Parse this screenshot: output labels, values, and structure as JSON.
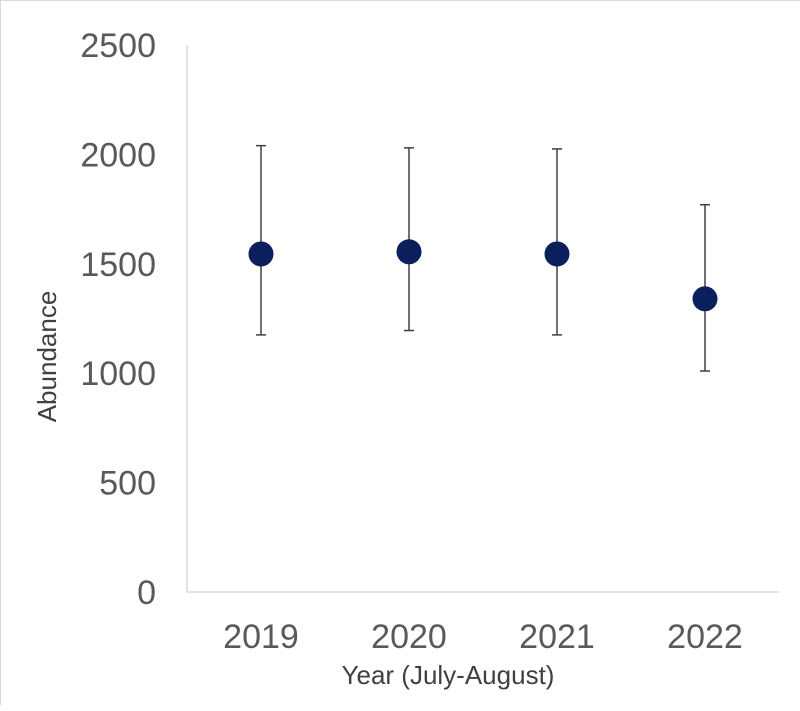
{
  "chart_data": {
    "type": "scatter",
    "title": "",
    "xlabel": "Year (July-August)",
    "ylabel": "Abundance",
    "ylim": [
      0,
      2500
    ],
    "yticks": [
      "0",
      "500",
      "1000",
      "1500",
      "2000",
      "2500"
    ],
    "categories": [
      "2019",
      "2020",
      "2021",
      "2022"
    ],
    "series": [
      {
        "values": [
          1545,
          1555,
          1545,
          1340
        ],
        "error_lower": [
          1175,
          1195,
          1175,
          1010
        ],
        "error_upper": [
          2040,
          2030,
          2025,
          1770
        ],
        "color": "#0b1f5c"
      }
    ],
    "grid": false,
    "legend": "none"
  }
}
